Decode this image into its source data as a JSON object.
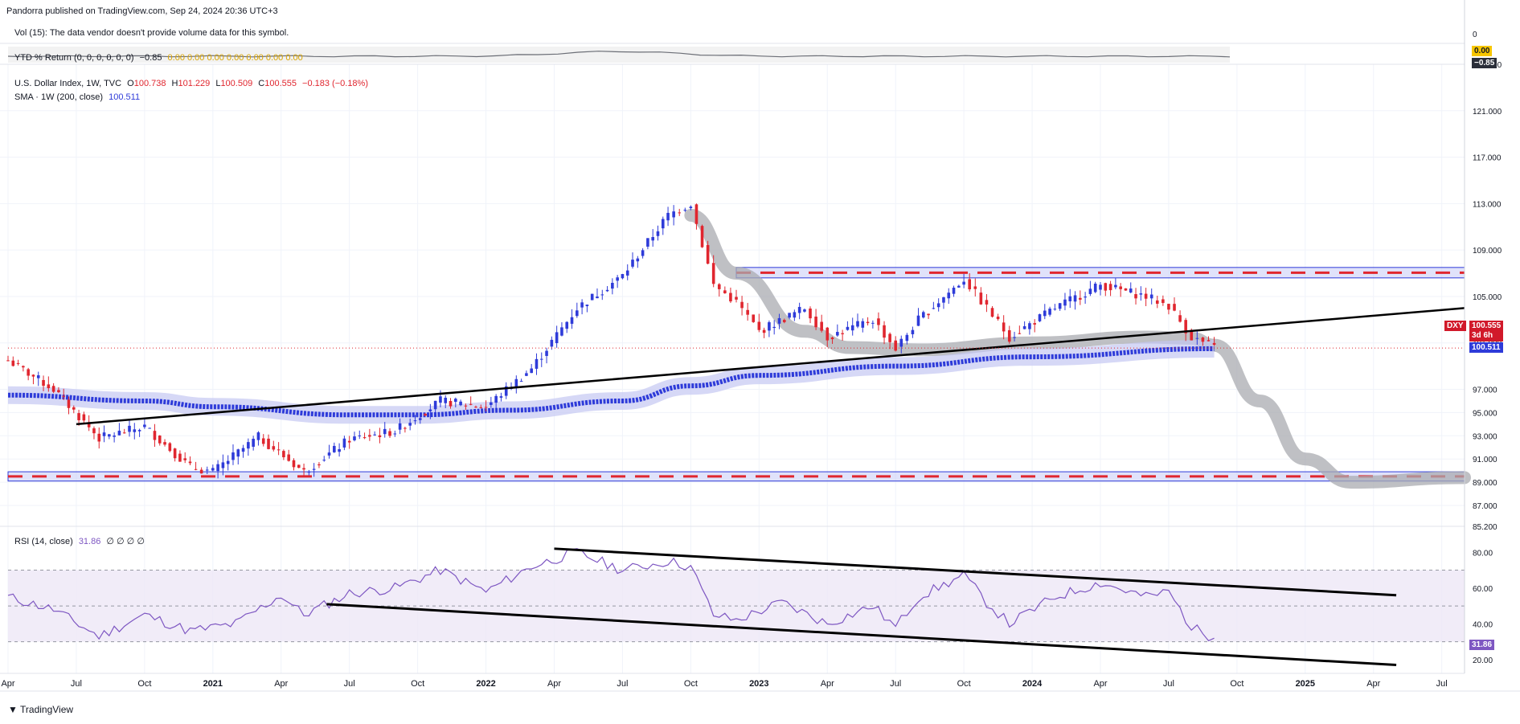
{
  "header": {
    "published": "Pandorra published on TradingView.com, Sep 24, 2024 20:36 UTC+3"
  },
  "vol_pane": {
    "label": "Vol (15): The data vendor doesn't provide volume data for this symbol."
  },
  "ytd_pane": {
    "label": "YTD % Return (0, 0, 0, 0, 0, 0)",
    "value": "−0.85",
    "zeros": "0.00  0.00  0.00  0.00  0.00  0.00  0.00",
    "axis_top": "0",
    "tag_zero": "0.00",
    "tag_value": "−0.85"
  },
  "main_legend": {
    "symbol": "U.S. Dollar Index, 1W, TVC",
    "o_label": "O",
    "o": "100.738",
    "h_label": "H",
    "h": "101.229",
    "l_label": "L",
    "l": "100.509",
    "c_label": "C",
    "c": "100.555",
    "chg": "−0.183 (−0.18%)",
    "sma_label": "SMA · 1W (200, close)",
    "sma_value": "100.511"
  },
  "rsi_legend": {
    "label": "RSI (14, close)",
    "value": "31.86",
    "extra": "∅ ∅ ∅ ∅"
  },
  "tags": {
    "dxy_symbol": "DXY",
    "dxy_price": "100.555",
    "dxy_countdown": "3d 6h",
    "sma_price": "100.511",
    "rsi_value": "31.86"
  },
  "brand": "TradingView",
  "colors": {
    "up": "#2e3bd9",
    "down": "#e0262f",
    "sma": "#2e3bd9",
    "sma_band": "#c5c8f2",
    "rsi": "#7e57c2",
    "rsi_band": "#ede7f6",
    "zone_fill": "#c6cbf5",
    "projection": "#a9abb0"
  },
  "chart_data": {
    "type": "candlestick",
    "price_axis": {
      "ticks": [
        "125.000",
        "121.000",
        "117.000",
        "113.000",
        "109.000",
        "105.000",
        "101.000",
        "97.000",
        "95.000",
        "93.000",
        "91.000",
        "89.000",
        "87.000",
        "85.200"
      ],
      "ylim": [
        85.2,
        125.0
      ]
    },
    "time_axis": {
      "ticks": [
        "Apr",
        "Jul",
        "Oct",
        "2021",
        "Apr",
        "Jul",
        "Oct",
        "2022",
        "Apr",
        "Jul",
        "Oct",
        "2023",
        "Apr",
        "Jul",
        "Oct",
        "2024",
        "Apr",
        "Jul",
        "Oct",
        "2025",
        "Apr",
        "Jul"
      ],
      "bold": [
        "2021",
        "2022",
        "2023",
        "2024",
        "2025"
      ],
      "range": [
        "2020-04",
        "2025-08"
      ]
    },
    "price_path": [
      {
        "t": "2020-04",
        "v": 99.5
      },
      {
        "t": "2020-06",
        "v": 97.0
      },
      {
        "t": "2020-08",
        "v": 92.8
      },
      {
        "t": "2020-10",
        "v": 93.8
      },
      {
        "t": "2020-12",
        "v": 90.3
      },
      {
        "t": "2021-01",
        "v": 89.9
      },
      {
        "t": "2021-03",
        "v": 92.9
      },
      {
        "t": "2021-05",
        "v": 89.9
      },
      {
        "t": "2021-07",
        "v": 92.7
      },
      {
        "t": "2021-09",
        "v": 93.4
      },
      {
        "t": "2021-11",
        "v": 96.0
      },
      {
        "t": "2022-01",
        "v": 95.5
      },
      {
        "t": "2022-03",
        "v": 98.8
      },
      {
        "t": "2022-05",
        "v": 104.0
      },
      {
        "t": "2022-07",
        "v": 106.8
      },
      {
        "t": "2022-09",
        "v": 112.0
      },
      {
        "t": "2022-10",
        "v": 113.0
      },
      {
        "t": "2022-11",
        "v": 106.0
      },
      {
        "t": "2022-12",
        "v": 104.5
      },
      {
        "t": "2023-01",
        "v": 102.0
      },
      {
        "t": "2023-03",
        "v": 104.0
      },
      {
        "t": "2023-04",
        "v": 101.5
      },
      {
        "t": "2023-06",
        "v": 103.0
      },
      {
        "t": "2023-07",
        "v": 100.5
      },
      {
        "t": "2023-08",
        "v": 103.0
      },
      {
        "t": "2023-10",
        "v": 106.5
      },
      {
        "t": "2023-11",
        "v": 104.0
      },
      {
        "t": "2023-12",
        "v": 101.5
      },
      {
        "t": "2024-02",
        "v": 104.0
      },
      {
        "t": "2024-04",
        "v": 106.0
      },
      {
        "t": "2024-06",
        "v": 105.0
      },
      {
        "t": "2024-07",
        "v": 104.2
      },
      {
        "t": "2024-08",
        "v": 101.5
      },
      {
        "t": "2024-09",
        "v": 100.6
      }
    ],
    "sma_path": [
      {
        "t": "2020-04",
        "v": 96.5
      },
      {
        "t": "2020-10",
        "v": 96.0
      },
      {
        "t": "2021-01",
        "v": 95.5
      },
      {
        "t": "2021-07",
        "v": 94.8
      },
      {
        "t": "2021-10",
        "v": 94.8
      },
      {
        "t": "2022-02",
        "v": 95.2
      },
      {
        "t": "2022-07",
        "v": 96.0
      },
      {
        "t": "2022-10",
        "v": 97.3
      },
      {
        "t": "2023-01",
        "v": 98.2
      },
      {
        "t": "2023-07",
        "v": 99.0
      },
      {
        "t": "2024-01",
        "v": 99.8
      },
      {
        "t": "2024-09",
        "v": 100.5
      }
    ],
    "resistance_zone": [
      106.6,
      107.5
    ],
    "support_zone": [
      89.1,
      89.9
    ],
    "trendline": [
      {
        "t": "2020-07",
        "v": 94.0
      },
      {
        "t": "2025-08",
        "v": 104.0
      }
    ],
    "projection_path": [
      {
        "t": "2022-10",
        "v": 112.0
      },
      {
        "t": "2022-12",
        "v": 107.0
      },
      {
        "t": "2023-03",
        "v": 102.0
      },
      {
        "t": "2023-05",
        "v": 100.6
      },
      {
        "t": "2023-08",
        "v": 100.4
      },
      {
        "t": "2024-01",
        "v": 101.0
      },
      {
        "t": "2024-06",
        "v": 101.5
      },
      {
        "t": "2024-08",
        "v": 101.4
      },
      {
        "t": "2024-09",
        "v": 100.8
      },
      {
        "t": "2024-11",
        "v": 96.0
      },
      {
        "t": "2025-01",
        "v": 91.0
      },
      {
        "t": "2025-03",
        "v": 89.0
      },
      {
        "t": "2025-08",
        "v": 89.4
      }
    ],
    "last_price": 100.555,
    "rsi": {
      "axis_ticks": [
        "80.00",
        "60.00",
        "40.00",
        "20.00"
      ],
      "ylim": [
        15,
        90
      ],
      "bands": [
        30,
        50,
        70
      ],
      "path": [
        {
          "t": "2020-04",
          "v": 55
        },
        {
          "t": "2020-06",
          "v": 48
        },
        {
          "t": "2020-08",
          "v": 33
        },
        {
          "t": "2020-10",
          "v": 45
        },
        {
          "t": "2020-12",
          "v": 36
        },
        {
          "t": "2021-02",
          "v": 40
        },
        {
          "t": "2021-04",
          "v": 56
        },
        {
          "t": "2021-05",
          "v": 45
        },
        {
          "t": "2021-07",
          "v": 57
        },
        {
          "t": "2021-09",
          "v": 60
        },
        {
          "t": "2021-11",
          "v": 70
        },
        {
          "t": "2022-01",
          "v": 58
        },
        {
          "t": "2022-03",
          "v": 72
        },
        {
          "t": "2022-05",
          "v": 80
        },
        {
          "t": "2022-07",
          "v": 70
        },
        {
          "t": "2022-09",
          "v": 75
        },
        {
          "t": "2022-10",
          "v": 72
        },
        {
          "t": "2022-11",
          "v": 45
        },
        {
          "t": "2022-12",
          "v": 42
        },
        {
          "t": "2023-02",
          "v": 52
        },
        {
          "t": "2023-04",
          "v": 40
        },
        {
          "t": "2023-06",
          "v": 50
        },
        {
          "t": "2023-07",
          "v": 38
        },
        {
          "t": "2023-08",
          "v": 55
        },
        {
          "t": "2023-10",
          "v": 67
        },
        {
          "t": "2023-11",
          "v": 52
        },
        {
          "t": "2023-12",
          "v": 40
        },
        {
          "t": "2024-02",
          "v": 55
        },
        {
          "t": "2024-04",
          "v": 63
        },
        {
          "t": "2024-06",
          "v": 55
        },
        {
          "t": "2024-07",
          "v": 58
        },
        {
          "t": "2024-08",
          "v": 38
        },
        {
          "t": "2024-09",
          "v": 32
        }
      ],
      "upper_trend": [
        {
          "t": "2022-04",
          "v": 82
        },
        {
          "t": "2025-05",
          "v": 56
        }
      ],
      "lower_trend": [
        {
          "t": "2021-06",
          "v": 51
        },
        {
          "t": "2025-05",
          "v": 17
        }
      ]
    }
  }
}
